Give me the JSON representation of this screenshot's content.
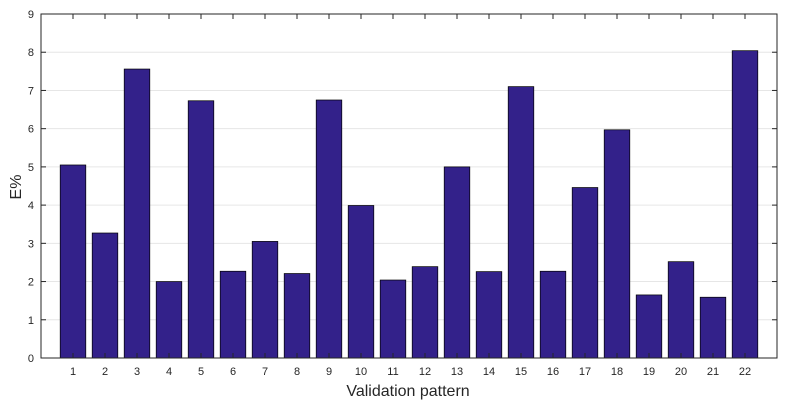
{
  "chart_data": {
    "type": "bar",
    "xlabel": "Validation pattern",
    "ylabel": "E%",
    "ylim": [
      0,
      9
    ],
    "yticks": [
      0,
      1,
      2,
      3,
      4,
      5,
      6,
      7,
      8,
      9
    ],
    "grid": "horizontal",
    "colors": {
      "bar": "#33218a",
      "bar_edge": "#000000",
      "axis": "#262626",
      "grid": "#e6e6e6"
    },
    "categories": [
      "1",
      "2",
      "3",
      "4",
      "5",
      "6",
      "7",
      "8",
      "9",
      "10",
      "11",
      "12",
      "13",
      "14",
      "15",
      "16",
      "17",
      "18",
      "19",
      "20",
      "21",
      "22"
    ],
    "values": [
      5.05,
      3.27,
      7.56,
      2.0,
      6.73,
      2.27,
      3.05,
      2.21,
      6.75,
      3.99,
      2.04,
      2.39,
      5.0,
      2.26,
      7.1,
      2.27,
      4.46,
      5.97,
      1.65,
      2.52,
      1.59,
      8.04
    ]
  }
}
